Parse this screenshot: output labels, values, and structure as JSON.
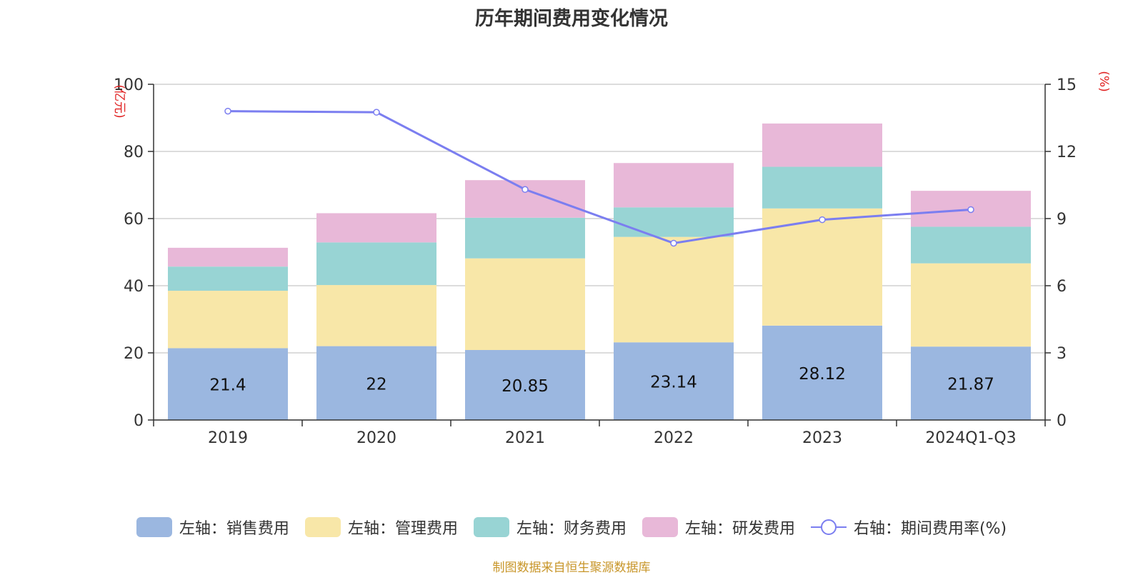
{
  "chart_data": {
    "type": "bar",
    "title": "历年期间费用变化情况",
    "categories": [
      "2019",
      "2020",
      "2021",
      "2022",
      "2023",
      "2024Q1-Q3"
    ],
    "stacked": true,
    "y_left": {
      "unit": "(亿元)",
      "min": 0,
      "max": 100,
      "ticks": [
        "0",
        "20",
        "40",
        "60",
        "80",
        "100"
      ]
    },
    "y_right": {
      "unit": "(%)",
      "min": 0,
      "max": 15,
      "ticks": [
        "0",
        "3",
        "6",
        "9",
        "12",
        "15"
      ]
    },
    "series": [
      {
        "name": "左轴：销售费用",
        "color": "#9bb7e0",
        "values": [
          21.4,
          22,
          20.85,
          23.14,
          28.12,
          21.87
        ],
        "labels": [
          "21.4",
          "22",
          "20.85",
          "23.14",
          "28.12",
          "21.87"
        ]
      },
      {
        "name": "左轴：管理费用",
        "color": "#f8e7a8",
        "values": [
          17.1,
          18.2,
          27.3,
          31.4,
          34.9,
          24.8
        ]
      },
      {
        "name": "左轴：财务费用",
        "color": "#98d4d4",
        "values": [
          7.2,
          12.7,
          12.1,
          8.8,
          12.4,
          10.9
        ]
      },
      {
        "name": "左轴：研发费用",
        "color": "#e8b8d8",
        "values": [
          5.6,
          8.7,
          11.2,
          13.2,
          12.9,
          10.7
        ]
      }
    ],
    "line": {
      "name": "右轴：期间费用率(%)",
      "color": "#7b7ef0",
      "values": [
        13.8,
        13.75,
        10.3,
        7.9,
        8.95,
        9.4
      ]
    }
  },
  "source": "制图数据来自恒生聚源数据库"
}
